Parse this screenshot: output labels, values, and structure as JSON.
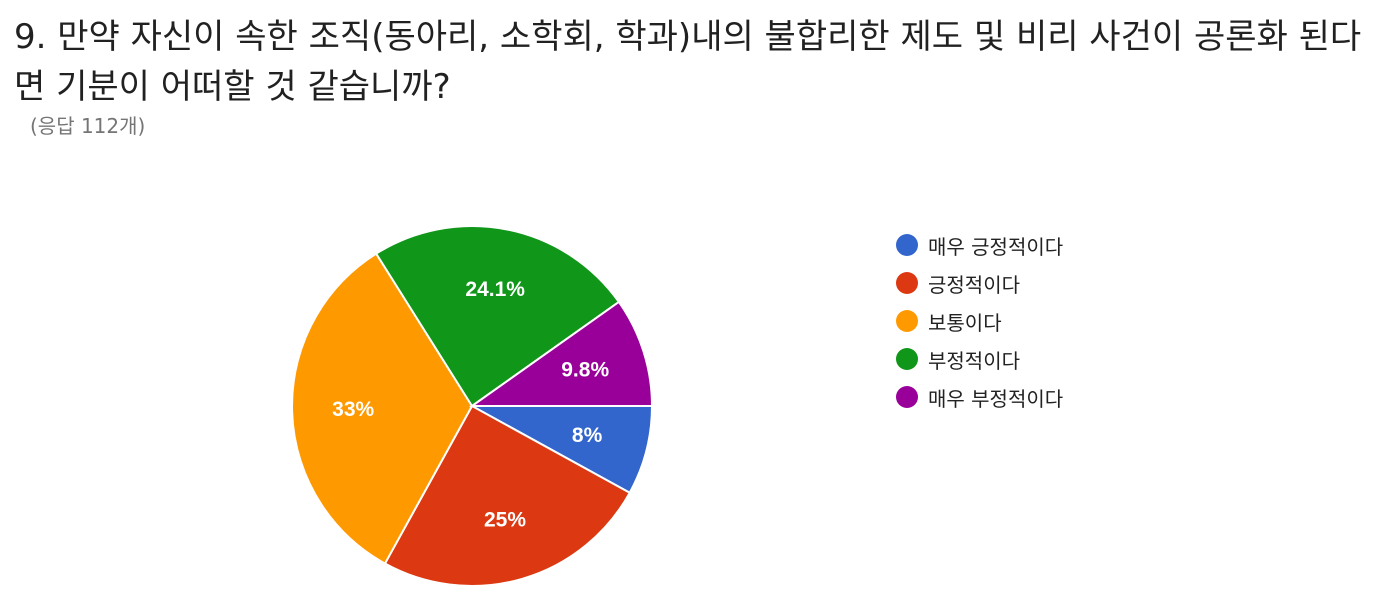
{
  "question": {
    "title": "9. 만약 자신이 속한 조직(동아리, 소학회, 학과)내의 불합리한 제도 및 비리 사건이 공론화 된다면 기분이 어떠할 것 같습니까?",
    "response_count": "(응답 112개)"
  },
  "chart_data": {
    "type": "pie",
    "title": "9. 만약 자신이 속한 조직(동아리, 소학회, 학과)내의 불합리한 제도 및 비리 사건이 공론화 된다면 기분이 어떠할 것 같습니까?",
    "subtitle": "(응답 112개)",
    "legend_position": "right",
    "slices": [
      {
        "label": "매우 긍정적이다",
        "value": 8,
        "display": "8%",
        "color": "#3366cc"
      },
      {
        "label": "긍정적이다",
        "value": 25,
        "display": "25%",
        "color": "#dc3912"
      },
      {
        "label": "보통이다",
        "value": 33,
        "display": "33%",
        "color": "#ff9900"
      },
      {
        "label": "부정적이다",
        "value": 24.1,
        "display": "24.1%",
        "color": "#109618"
      },
      {
        "label": "매우 부정적이다",
        "value": 9.8,
        "display": "9.8%",
        "color": "#990099"
      }
    ]
  }
}
